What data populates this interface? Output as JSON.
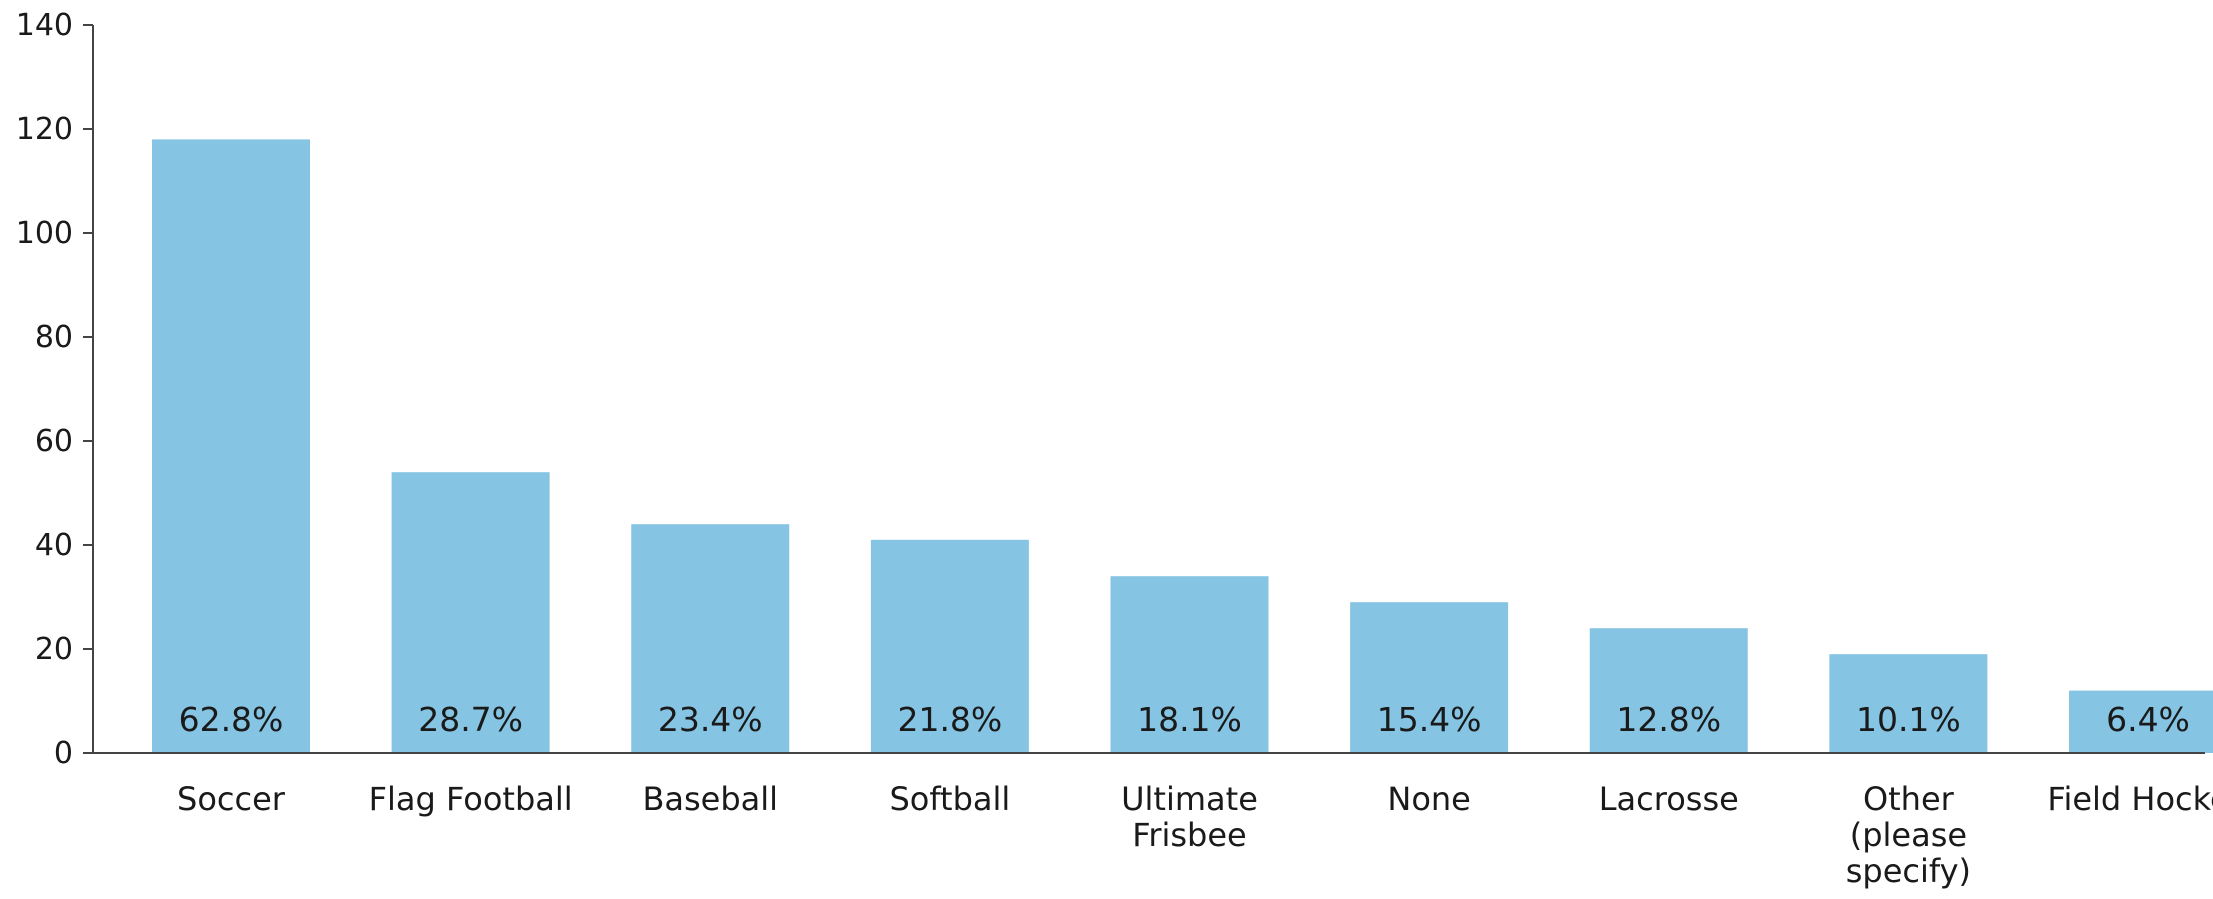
{
  "chart_data": {
    "type": "bar",
    "categories": [
      [
        "Soccer"
      ],
      [
        "Flag Football"
      ],
      [
        "Baseball"
      ],
      [
        "Softball"
      ],
      [
        "Ultimate",
        "Frisbee"
      ],
      [
        "None"
      ],
      [
        "Lacrosse"
      ],
      [
        "Other",
        "(please",
        "specify)"
      ],
      [
        "Field Hockey"
      ]
    ],
    "values": [
      118,
      54,
      44,
      41,
      34,
      29,
      24,
      19,
      12
    ],
    "data_labels": [
      "62.8%",
      "28.7%",
      "23.4%",
      "21.8%",
      "18.1%",
      "15.4%",
      "12.8%",
      "10.1%",
      "6.4%"
    ],
    "yticks": [
      0,
      20,
      40,
      60,
      80,
      100,
      120,
      140
    ],
    "ylim": [
      0,
      140
    ],
    "bar_color": "#85c4e3",
    "grid": true
  }
}
